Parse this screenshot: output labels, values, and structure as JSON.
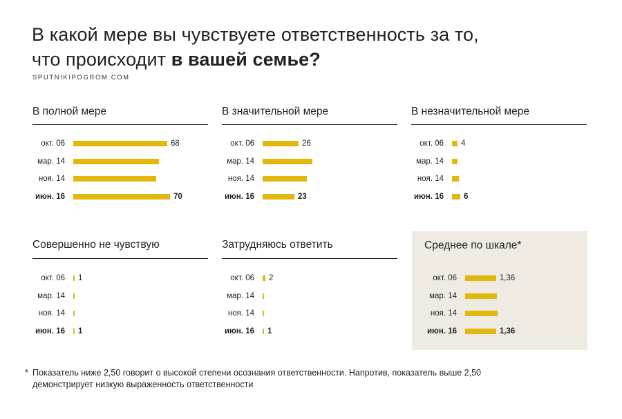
{
  "title": {
    "line1": "В какой мере вы чувствуете ответственность за то,",
    "line2_prefix": "что происходит ",
    "line2_bold": "в вашей семье?"
  },
  "source": "SPUTNIKIPOGROM.COM",
  "footnote": {
    "mark": "*",
    "text": "Показатель ниже 2,50 говорит о высокой степени осознания ответственности. Напротив, показатель выше 2,50 демонстрирует низкую выраженность ответственности"
  },
  "colors": {
    "bar": "#e2b80d",
    "shade": "#efebe2"
  },
  "chart_data": [
    {
      "type": "bar",
      "title": "В полной мере",
      "categories": [
        "окт. 06",
        "мар. 14",
        "ноя. 14",
        "июн. 16"
      ],
      "values": [
        68,
        62,
        60,
        70
      ],
      "labels": [
        "68",
        "",
        "",
        "70"
      ]
    },
    {
      "type": "bar",
      "title": "В значительной мере",
      "categories": [
        "окт. 06",
        "мар. 14",
        "ноя. 14",
        "июн. 16"
      ],
      "values": [
        26,
        36,
        32,
        23
      ],
      "labels": [
        "26",
        "",
        "",
        "23"
      ]
    },
    {
      "type": "bar",
      "title": "В незначительной мере",
      "categories": [
        "окт. 06",
        "мар. 14",
        "ноя. 14",
        "июн. 16"
      ],
      "values": [
        4,
        4,
        5,
        6
      ],
      "labels": [
        "4",
        "",
        "",
        "6"
      ]
    },
    {
      "type": "bar",
      "title": "Совершенно не чувствую",
      "categories": [
        "окт. 06",
        "мар. 14",
        "ноя. 14",
        "июн. 16"
      ],
      "values": [
        1,
        1,
        1,
        1
      ],
      "labels": [
        "1",
        "",
        "",
        "1"
      ]
    },
    {
      "type": "bar",
      "title": "Затрудняюсь ответить",
      "categories": [
        "окт. 06",
        "мар. 14",
        "ноя. 14",
        "июн. 16"
      ],
      "values": [
        2,
        1,
        1,
        1
      ],
      "labels": [
        "2",
        "",
        "",
        "1"
      ]
    },
    {
      "type": "bar",
      "title": "Среднее по шкале*",
      "categories": [
        "окт. 06",
        "мар. 14",
        "ноя. 14",
        "июн. 16"
      ],
      "values": [
        1.36,
        1.4,
        1.42,
        1.36
      ],
      "labels": [
        "1,36",
        "",
        "",
        "1,36"
      ]
    }
  ]
}
